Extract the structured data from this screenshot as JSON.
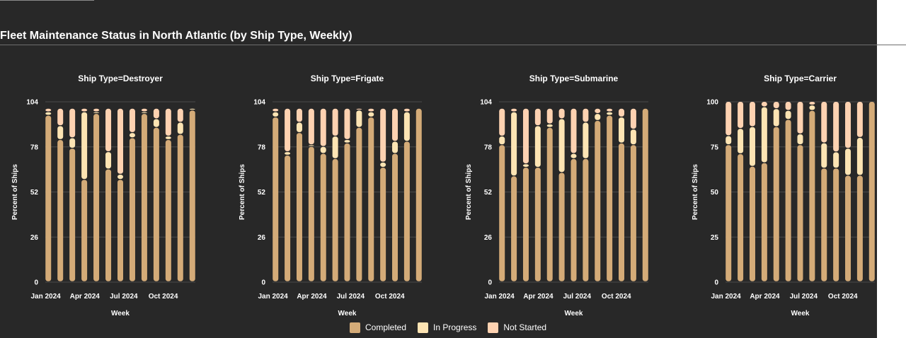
{
  "header": {
    "title": "Fleet Maintenance Status in North Atlantic (by Ship Type, Weekly)"
  },
  "legend": {
    "items": [
      {
        "label": "Completed",
        "color": "#d4ab78"
      },
      {
        "label": "In Progress",
        "color": "#fde4b3"
      },
      {
        "label": "Not Started",
        "color": "#fed2b1"
      }
    ]
  },
  "chart_data": [
    {
      "type": "bar",
      "stacked": true,
      "title": "Ship Type=Destroyer",
      "xlabel": "Week",
      "ylabel": "Percent of Ships",
      "ylim": [
        0,
        104
      ],
      "yticks": [
        0,
        26,
        52,
        78,
        104
      ],
      "xticks": [
        "Jan 2024",
        "Apr 2024",
        "Jul 2024",
        "Oct 2024"
      ],
      "categories": [
        "2024-01-07",
        "2024-02-04",
        "2024-03-03",
        "2024-03-31",
        "2024-04-28",
        "2024-05-26",
        "2024-06-23",
        "2024-07-21",
        "2024-08-18",
        "2024-09-15",
        "2024-10-13",
        "2024-11-10",
        "2024-12-08"
      ],
      "series": [
        {
          "name": "Completed",
          "values": [
            96,
            82,
            77,
            59,
            97,
            65,
            59,
            83,
            97,
            89,
            82,
            85,
            99
          ]
        },
        {
          "name": "In Progress",
          "values": [
            2,
            8,
            6,
            39,
            1,
            10,
            3,
            3,
            1,
            5,
            2,
            7,
            1
          ]
        },
        {
          "name": "Not Started",
          "values": [
            2,
            10,
            17,
            2,
            2,
            25,
            38,
            14,
            2,
            6,
            16,
            8,
            0
          ]
        }
      ]
    },
    {
      "type": "bar",
      "stacked": true,
      "title": "Ship Type=Frigate",
      "xlabel": "Week",
      "ylabel": "Percent of Ships",
      "ylim": [
        0,
        104
      ],
      "yticks": [
        0,
        26,
        52,
        78,
        104
      ],
      "xticks": [
        "Jan 2024",
        "Apr 2024",
        "Jul 2024",
        "Oct 2024"
      ],
      "categories": [
        "2024-01-07",
        "2024-02-04",
        "2024-03-03",
        "2024-03-31",
        "2024-04-28",
        "2024-05-26",
        "2024-06-23",
        "2024-07-21",
        "2024-08-18",
        "2024-09-15",
        "2024-10-13",
        "2024-11-10",
        "2024-12-08"
      ],
      "series": [
        {
          "name": "Completed",
          "values": [
            95,
            73,
            86,
            78,
            74,
            71,
            80,
            89,
            95,
            66,
            74,
            81,
            100
          ]
        },
        {
          "name": "In Progress",
          "values": [
            3,
            2,
            6,
            1,
            4,
            13,
            2,
            10,
            3,
            3,
            7,
            17,
            0
          ]
        },
        {
          "name": "Not Started",
          "values": [
            2,
            25,
            8,
            21,
            22,
            16,
            18,
            1,
            2,
            31,
            19,
            2,
            0
          ]
        }
      ]
    },
    {
      "type": "bar",
      "stacked": true,
      "title": "Ship Type=Submarine",
      "xlabel": "Week",
      "ylabel": "Percent of Ships",
      "ylim": [
        0,
        104
      ],
      "yticks": [
        0,
        26,
        52,
        78,
        104
      ],
      "xticks": [
        "Jan 2024",
        "Apr 2024",
        "Jul 2024",
        "Oct 2024"
      ],
      "categories": [
        "2024-01-07",
        "2024-02-04",
        "2024-03-03",
        "2024-03-31",
        "2024-04-28",
        "2024-05-26",
        "2024-06-23",
        "2024-07-21",
        "2024-08-18",
        "2024-09-15",
        "2024-10-13",
        "2024-11-10",
        "2024-12-08"
      ],
      "series": [
        {
          "name": "Completed",
          "values": [
            79,
            61,
            66,
            66,
            89,
            63,
            71,
            71,
            93,
            96,
            80,
            79,
            100
          ]
        },
        {
          "name": "In Progress",
          "values": [
            5,
            37,
            2,
            24,
            2,
            31,
            3,
            21,
            4,
            2,
            15,
            9,
            0
          ]
        },
        {
          "name": "Not Started",
          "values": [
            16,
            2,
            32,
            10,
            9,
            6,
            26,
            8,
            3,
            2,
            5,
            12,
            0
          ]
        }
      ]
    },
    {
      "type": "bar",
      "stacked": true,
      "title": "Ship Type=Carrier",
      "xlabel": "Week",
      "ylabel": "Percent of Ships",
      "ylim": [
        0,
        100
      ],
      "yticks": [
        0,
        25,
        50,
        75,
        100
      ],
      "xticks": [
        "Jan 2024",
        "Apr 2024",
        "Jul 2024",
        "Oct 2024"
      ],
      "categories": [
        "2024-01-07",
        "2024-02-04",
        "2024-03-03",
        "2024-03-31",
        "2024-04-28",
        "2024-05-26",
        "2024-06-23",
        "2024-07-21",
        "2024-08-18",
        "2024-09-15",
        "2024-10-13",
        "2024-11-10",
        "2024-12-08"
      ],
      "series": [
        {
          "name": "Completed",
          "values": [
            76,
            71,
            64,
            66,
            86,
            90,
            76,
            95,
            63,
            63,
            59,
            59,
            100
          ]
        },
        {
          "name": "In Progress",
          "values": [
            5,
            14,
            22,
            31,
            10,
            5,
            6,
            3,
            14,
            9,
            15,
            21,
            0
          ]
        },
        {
          "name": "Not Started",
          "values": [
            19,
            15,
            14,
            3,
            4,
            5,
            18,
            2,
            23,
            28,
            26,
            20,
            0
          ]
        }
      ]
    }
  ]
}
